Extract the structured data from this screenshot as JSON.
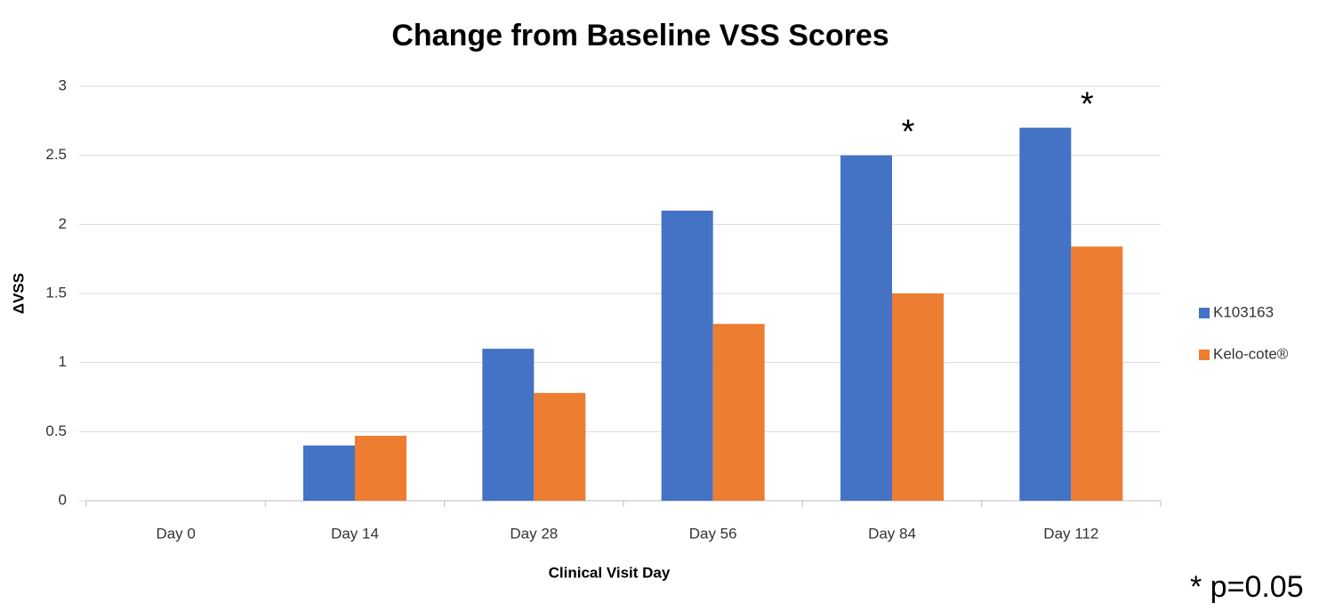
{
  "chart_data": {
    "type": "bar",
    "title": "Change from Baseline VSS Scores",
    "x_label": "Clinical Visit Day",
    "y_label": "ΔVSS",
    "categories": [
      "Day 0",
      "Day 14",
      "Day 28",
      "Day 56",
      "Day 84",
      "Day 112"
    ],
    "series": [
      {
        "name": "K103163",
        "color": "#4472c4",
        "values": [
          0,
          0.4,
          1.1,
          2.1,
          2.5,
          2.7
        ]
      },
      {
        "name": "Kelo-cote®",
        "color": "#ed7d31",
        "values": [
          0,
          0.47,
          0.78,
          1.28,
          1.5,
          1.84
        ]
      }
    ],
    "ylim": [
      0,
      3
    ],
    "yticks": [
      0,
      0.5,
      1,
      1.5,
      2,
      2.5,
      3
    ],
    "grid": true,
    "legend": "right",
    "annotations": [
      {
        "text": "*",
        "category": "Day 84"
      },
      {
        "text": "*",
        "category": "Day 112"
      }
    ],
    "note": "* p=0.05"
  }
}
